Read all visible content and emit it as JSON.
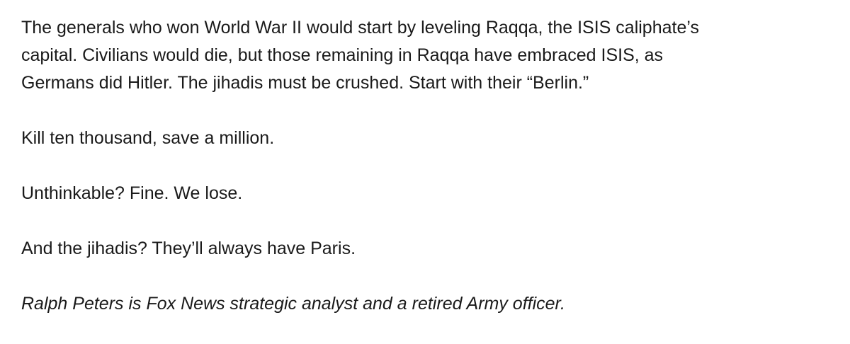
{
  "article": {
    "paragraph1_lines": [
      "The generals who won World War II would start by leveling Raqqa, the ISIS caliphate’s",
      "capital. Civilians would die, but those remaining in Raqqa have embraced ISIS, as",
      "Germans did Hitler. The jihadis must be crushed. Start with their “Berlin.”"
    ],
    "paragraph2": "Kill ten thousand, save a million.",
    "paragraph3": "Unthinkable? Fine. We lose.",
    "paragraph4": "And the jihadis? They’ll always have Paris.",
    "byline": "Ralph Peters is Fox News strategic analyst and a retired Army officer."
  }
}
